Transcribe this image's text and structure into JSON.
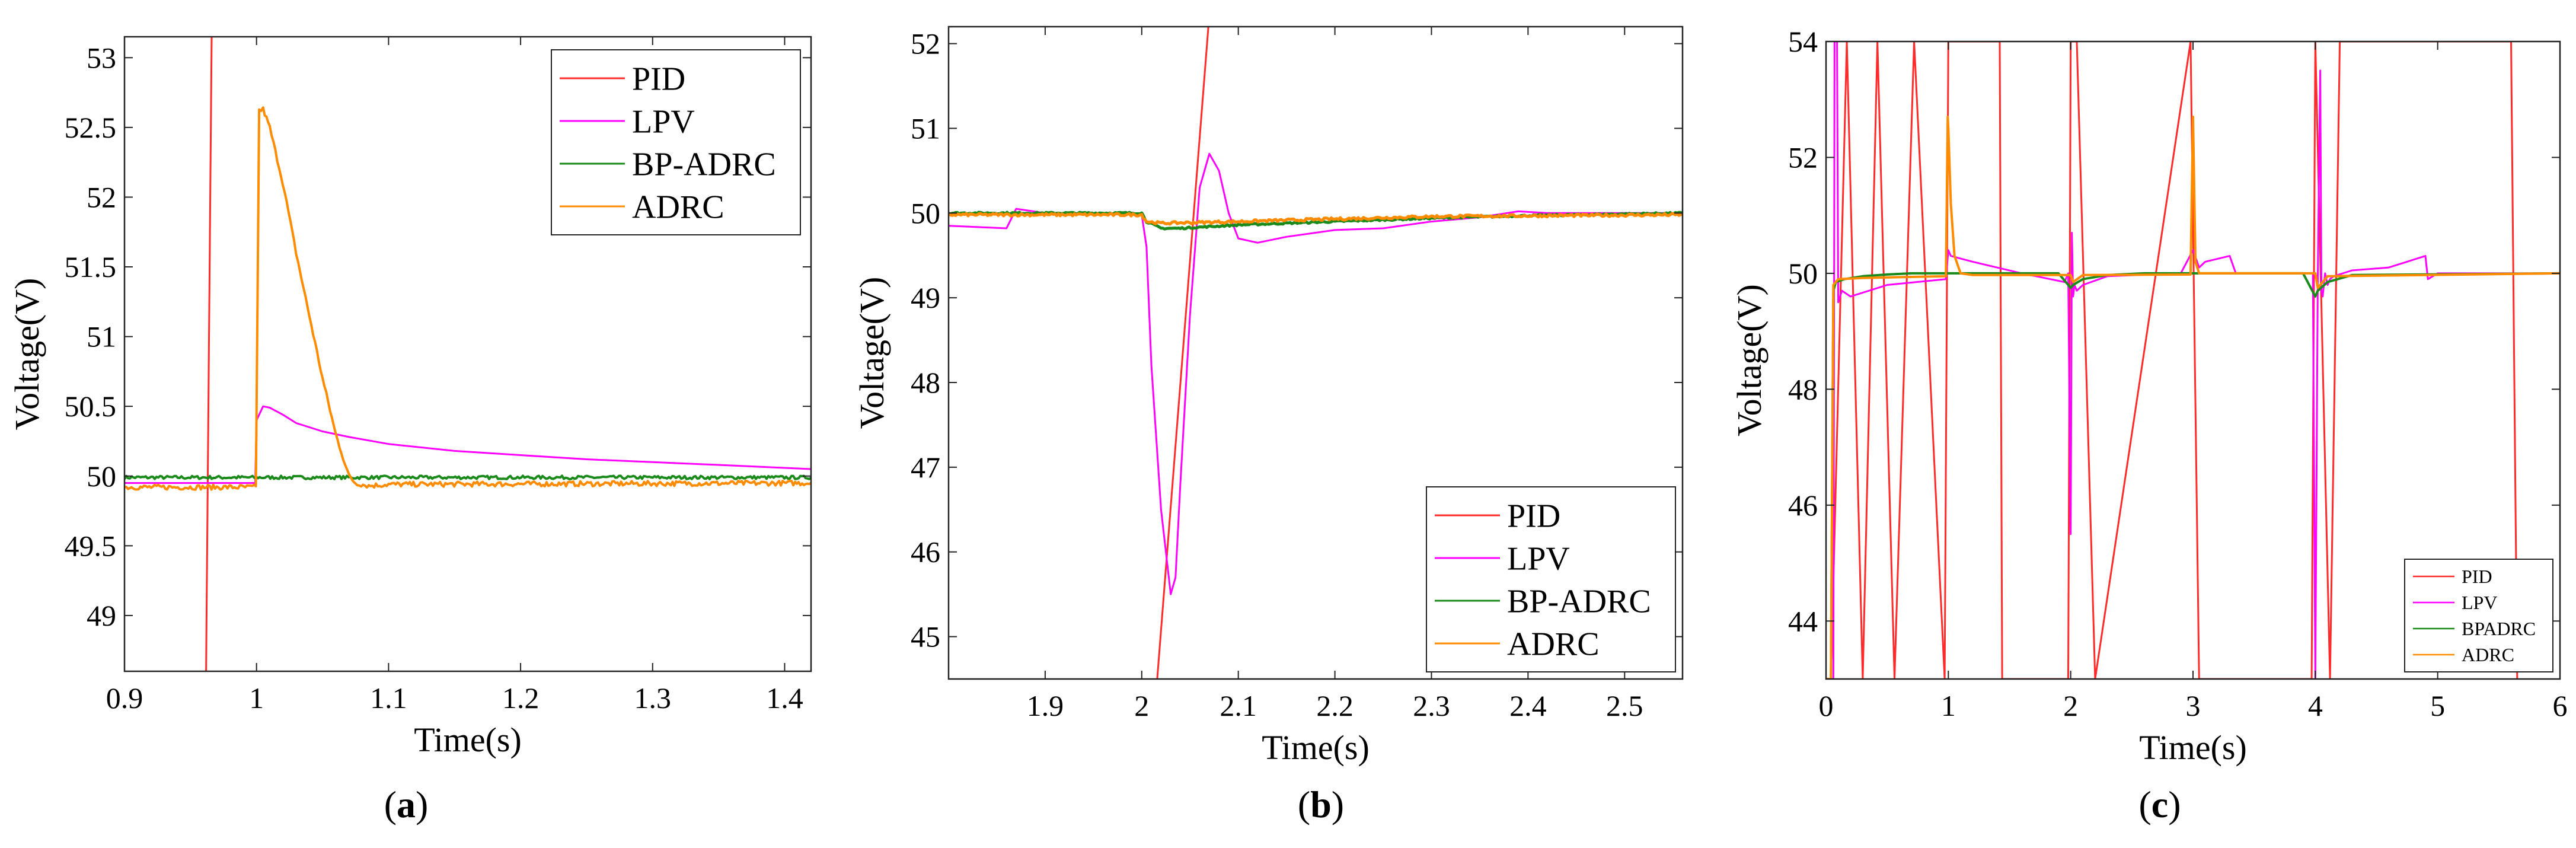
{
  "figure": {
    "captions": [
      {
        "pre": "(",
        "letter": "a",
        "post": ")"
      },
      {
        "pre": "(",
        "letter": "b",
        "post": ")"
      },
      {
        "pre": "(",
        "letter": "c",
        "post": ")"
      }
    ]
  },
  "chart_data": [
    {
      "type": "line",
      "id": "a",
      "xlabel": "Time(s)",
      "ylabel": "Voltage(V)",
      "xlim": [
        0.9,
        1.42
      ],
      "ylim": [
        48.6,
        53.15
      ],
      "xticks": [
        0.9,
        1,
        1.1,
        1.2,
        1.3,
        1.4
      ],
      "xtick_labels": [
        "0.9",
        "1",
        "1.1",
        "1.2",
        "1.3",
        "1.4"
      ],
      "yticks": [
        49,
        49.5,
        50,
        50.5,
        51,
        51.5,
        52,
        52.5,
        53
      ],
      "ytick_labels": [
        "49",
        "49.5",
        "50",
        "50.5",
        "51",
        "51.5",
        "52",
        "52.5",
        "53"
      ],
      "legend_position": "top-right",
      "legend_size": "large",
      "series": [
        {
          "name": "PID",
          "color": "#ff2a2a",
          "width": 3,
          "x": [
            0.9618,
            0.966
          ],
          "y": [
            48.6,
            53.15
          ]
        },
        {
          "name": "LPV",
          "color": "#ff00ff",
          "width": 3,
          "x": [
            0.9,
            0.999,
            1.0,
            1.005,
            1.01,
            1.02,
            1.03,
            1.05,
            1.07,
            1.1,
            1.15,
            1.2,
            1.25,
            1.3,
            1.35,
            1.42
          ],
          "y": [
            49.95,
            49.95,
            50.4,
            50.5,
            50.49,
            50.44,
            50.38,
            50.32,
            50.28,
            50.23,
            50.18,
            50.15,
            50.12,
            50.1,
            50.08,
            50.05
          ]
        },
        {
          "name": "BP-ADRC",
          "color": "#1a8a1a",
          "width": 4,
          "noise": 0.012,
          "x": [
            0.9,
            1.42
          ],
          "y": [
            49.99,
            49.99
          ]
        },
        {
          "name": "ADRC",
          "color": "#ff8c00",
          "width": 4,
          "noise": 0.018,
          "x": [
            0.9,
            0.9995,
            1.002,
            1.005,
            1.01,
            1.02,
            1.03,
            1.04,
            1.05,
            1.06,
            1.07,
            1.075,
            1.085,
            1.1,
            1.42
          ],
          "y": [
            49.92,
            49.92,
            52.62,
            52.63,
            52.5,
            52.1,
            51.6,
            51.15,
            50.7,
            50.3,
            50.0,
            49.95,
            49.93,
            49.94,
            49.95
          ]
        }
      ]
    },
    {
      "type": "line",
      "id": "b",
      "xlabel": "Time(s)",
      "ylabel": "Voltage(V)",
      "xlim": [
        1.8,
        2.56
      ],
      "ylim": [
        44.5,
        52.2
      ],
      "xticks": [
        1.9,
        2,
        2.1,
        2.2,
        2.3,
        2.4,
        2.5
      ],
      "xtick_labels": [
        "1.9",
        "2",
        "2.1",
        "2.2",
        "2.3",
        "2.4",
        "2.5"
      ],
      "yticks": [
        45,
        46,
        47,
        48,
        49,
        50,
        51,
        52
      ],
      "ytick_labels": [
        "45",
        "46",
        "47",
        "48",
        "49",
        "50",
        "51",
        "52"
      ],
      "legend_position": "bottom-right",
      "legend_size": "large",
      "series": [
        {
          "name": "PID",
          "color": "#ff2a2a",
          "width": 3,
          "x": [
            2.016,
            2.069
          ],
          "y": [
            44.5,
            52.2
          ]
        },
        {
          "name": "LPV",
          "color": "#ff00ff",
          "width": 3,
          "x": [
            1.8,
            1.86,
            1.87,
            1.9,
            2.0,
            2.005,
            2.01,
            2.02,
            2.03,
            2.035,
            2.04,
            2.05,
            2.06,
            2.07,
            2.08,
            2.09,
            2.1,
            2.12,
            2.15,
            2.2,
            2.25,
            2.3,
            2.35,
            2.39,
            2.42,
            2.56
          ],
          "y": [
            49.85,
            49.82,
            50.05,
            50.0,
            49.98,
            49.6,
            48.2,
            46.5,
            45.5,
            45.7,
            46.8,
            48.8,
            50.3,
            50.7,
            50.5,
            50.0,
            49.7,
            49.65,
            49.72,
            49.8,
            49.82,
            49.9,
            49.95,
            50.02,
            50.0,
            50.0
          ]
        },
        {
          "name": "BP-ADRC",
          "color": "#1a8a1a",
          "width": 5,
          "noise": 0.01,
          "x": [
            1.8,
            2.0,
            2.005,
            2.02,
            2.04,
            2.1,
            2.2,
            2.3,
            2.4,
            2.56
          ],
          "y": [
            50.0,
            50.0,
            49.9,
            49.82,
            49.82,
            49.86,
            49.9,
            49.94,
            49.97,
            50.0
          ]
        },
        {
          "name": "ADRC",
          "color": "#ff8c00",
          "width": 5,
          "noise": 0.015,
          "x": [
            1.8,
            2.0,
            2.005,
            2.02,
            2.1,
            2.2,
            2.3,
            2.56
          ],
          "y": [
            49.98,
            49.98,
            49.9,
            49.88,
            49.9,
            49.93,
            49.96,
            49.98
          ]
        }
      ]
    },
    {
      "type": "line",
      "id": "c",
      "xlabel": "Time(s)",
      "ylabel": "Voltage(V)",
      "xlim": [
        0,
        6
      ],
      "ylim": [
        43,
        54
      ],
      "xticks": [
        0,
        1,
        2,
        3,
        4,
        5,
        6
      ],
      "xtick_labels": [
        "0",
        "1",
        "2",
        "3",
        "4",
        "5",
        "6"
      ],
      "yticks": [
        44,
        46,
        48,
        50,
        52,
        54
      ],
      "ytick_labels": [
        "44",
        "46",
        "48",
        "50",
        "52",
        "54"
      ],
      "legend_position": "bottom-right",
      "legend_size": "small",
      "series": [
        {
          "name": "PID",
          "color": "#ff2a2a",
          "width": 3,
          "x": [
            0.04,
            0.17,
            0.3,
            0.42,
            0.56,
            0.72,
            0.97,
            1.0,
            1.42,
            1.44,
            1.98,
            2.0,
            2.05,
            2.2,
            2.98,
            3.05,
            3.97,
            4.0,
            4.12,
            4.2,
            5.6,
            5.65
          ],
          "y": [
            43,
            54,
            43,
            54,
            43,
            54,
            43,
            54,
            54,
            43,
            43,
            54,
            54,
            43,
            54,
            43,
            43,
            54,
            43,
            54,
            54,
            43
          ]
        },
        {
          "name": "LPV",
          "color": "#ff00ff",
          "width": 3,
          "x": [
            0.0,
            0.06,
            0.07,
            0.09,
            0.1,
            0.13,
            0.2,
            0.5,
            0.98,
            1.0,
            1.02,
            1.2,
            1.6,
            1.95,
            1.98,
            2.0,
            2.01,
            2.02,
            2.03,
            2.05,
            2.1,
            2.3,
            2.9,
            3.0,
            3.05,
            3.1,
            3.3,
            3.35,
            3.9,
            3.98,
            4.0,
            4.02,
            4.04,
            4.05,
            4.06,
            4.08,
            4.1,
            4.12,
            4.15,
            4.3,
            4.6,
            4.9,
            4.92,
            5.0,
            6.0
          ],
          "y": [
            43,
            43,
            54,
            54,
            49.5,
            49.7,
            49.6,
            49.8,
            49.9,
            50.4,
            50.3,
            50.2,
            50.0,
            49.85,
            50.0,
            45.5,
            50.7,
            49.6,
            49.8,
            49.7,
            49.8,
            49.95,
            50.0,
            50.4,
            50.1,
            50.2,
            50.3,
            50.0,
            50.0,
            50.0,
            43,
            50.0,
            53.5,
            49.7,
            49.6,
            50.0,
            49.8,
            49.9,
            49.95,
            50.05,
            50.1,
            50.3,
            49.9,
            50.0,
            50.0
          ]
        },
        {
          "name": "BPADRC",
          "color": "#1a8a1a",
          "width": 4,
          "x": [
            0.0,
            0.04,
            0.06,
            0.08,
            0.15,
            0.3,
            0.5,
            0.7,
            1.0,
            1.9,
            2.0,
            2.02,
            2.1,
            2.3,
            2.6,
            3.0,
            3.9,
            4.0,
            4.02,
            4.1,
            4.3,
            6.0
          ],
          "y": [
            43,
            43,
            49.7,
            49.85,
            49.9,
            49.95,
            49.98,
            50.0,
            50.0,
            50.0,
            49.75,
            49.8,
            49.9,
            49.97,
            50.0,
            50.0,
            50.0,
            49.6,
            49.7,
            49.85,
            49.97,
            50.0
          ]
        },
        {
          "name": "ADRC",
          "color": "#ff8c00",
          "width": 4,
          "x": [
            0.0,
            0.04,
            0.06,
            0.1,
            0.3,
            0.98,
            0.995,
            1.0,
            1.02,
            1.05,
            1.1,
            1.2,
            2.0,
            2.02,
            2.1,
            2.98,
            3.0,
            3.02,
            3.05,
            3.2,
            4.0,
            4.02,
            4.1,
            6.0
          ],
          "y": [
            43,
            43,
            49.8,
            49.9,
            49.92,
            49.95,
            52.7,
            52.5,
            51.2,
            50.3,
            50.0,
            49.97,
            49.97,
            49.85,
            49.97,
            49.98,
            52.7,
            50.2,
            50.0,
            50.0,
            50.0,
            49.75,
            49.95,
            50.0
          ]
        }
      ]
    }
  ]
}
